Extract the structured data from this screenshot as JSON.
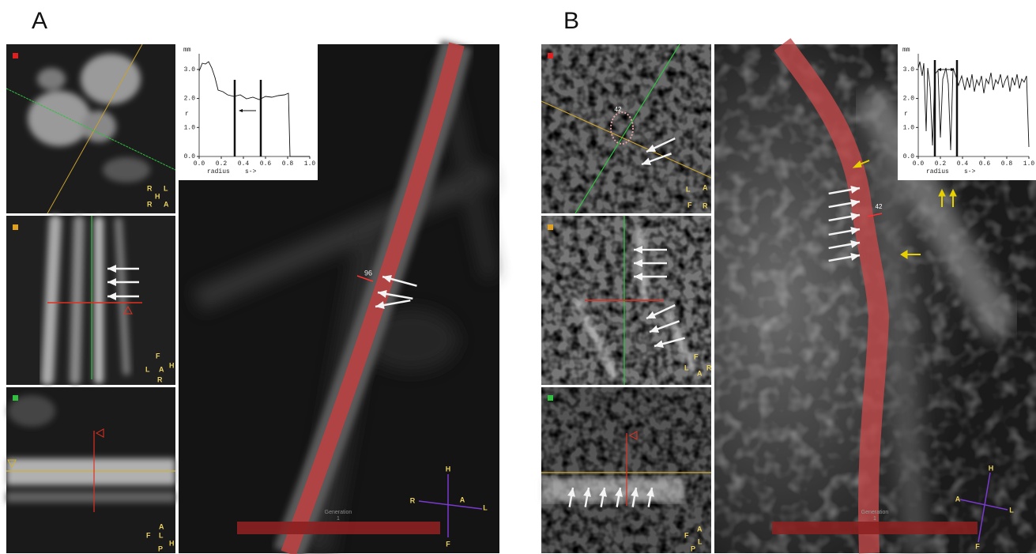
{
  "panels": [
    {
      "label": "A",
      "vessel_label": "96",
      "generation": "Generation",
      "generation_number": "1",
      "compass": [
        "H",
        "R",
        "A",
        "L",
        "F"
      ],
      "views": [
        [
          "R",
          "L",
          "H",
          "R",
          "A"
        ],
        [
          "F",
          "L",
          "A",
          "H",
          "R"
        ],
        [
          "A",
          "F",
          "L",
          "H",
          "P"
        ]
      ],
      "plot": {
        "y_unit": "mm",
        "y_axis": "r",
        "x_axis": "radius",
        "x_note": "s->",
        "xticks": [
          "0.0",
          "0.2",
          "0.4",
          "0.6",
          "0.8",
          "1.0"
        ],
        "yticks": [
          "0.0",
          "1.0",
          "2.0",
          "3.0"
        ]
      }
    },
    {
      "label": "B",
      "vessel_label": "42",
      "generation": "Generation",
      "generation_number": "1",
      "compass": [
        "H",
        "A",
        "L",
        "F"
      ],
      "views": [
        [
          "L",
          "A",
          "F",
          "R"
        ],
        [
          "F",
          "L",
          "A",
          "R"
        ],
        [
          "A",
          "F",
          "L",
          "P"
        ]
      ],
      "plot": {
        "y_unit": "mm",
        "y_axis": "r",
        "x_axis": "radius",
        "x_note": "s->",
        "xticks": [
          "0.0",
          "0.2",
          "0.4",
          "0.6",
          "0.8",
          "1.0"
        ],
        "yticks": [
          "0.0",
          "1.0",
          "2.0",
          "3.0"
        ]
      }
    }
  ]
}
